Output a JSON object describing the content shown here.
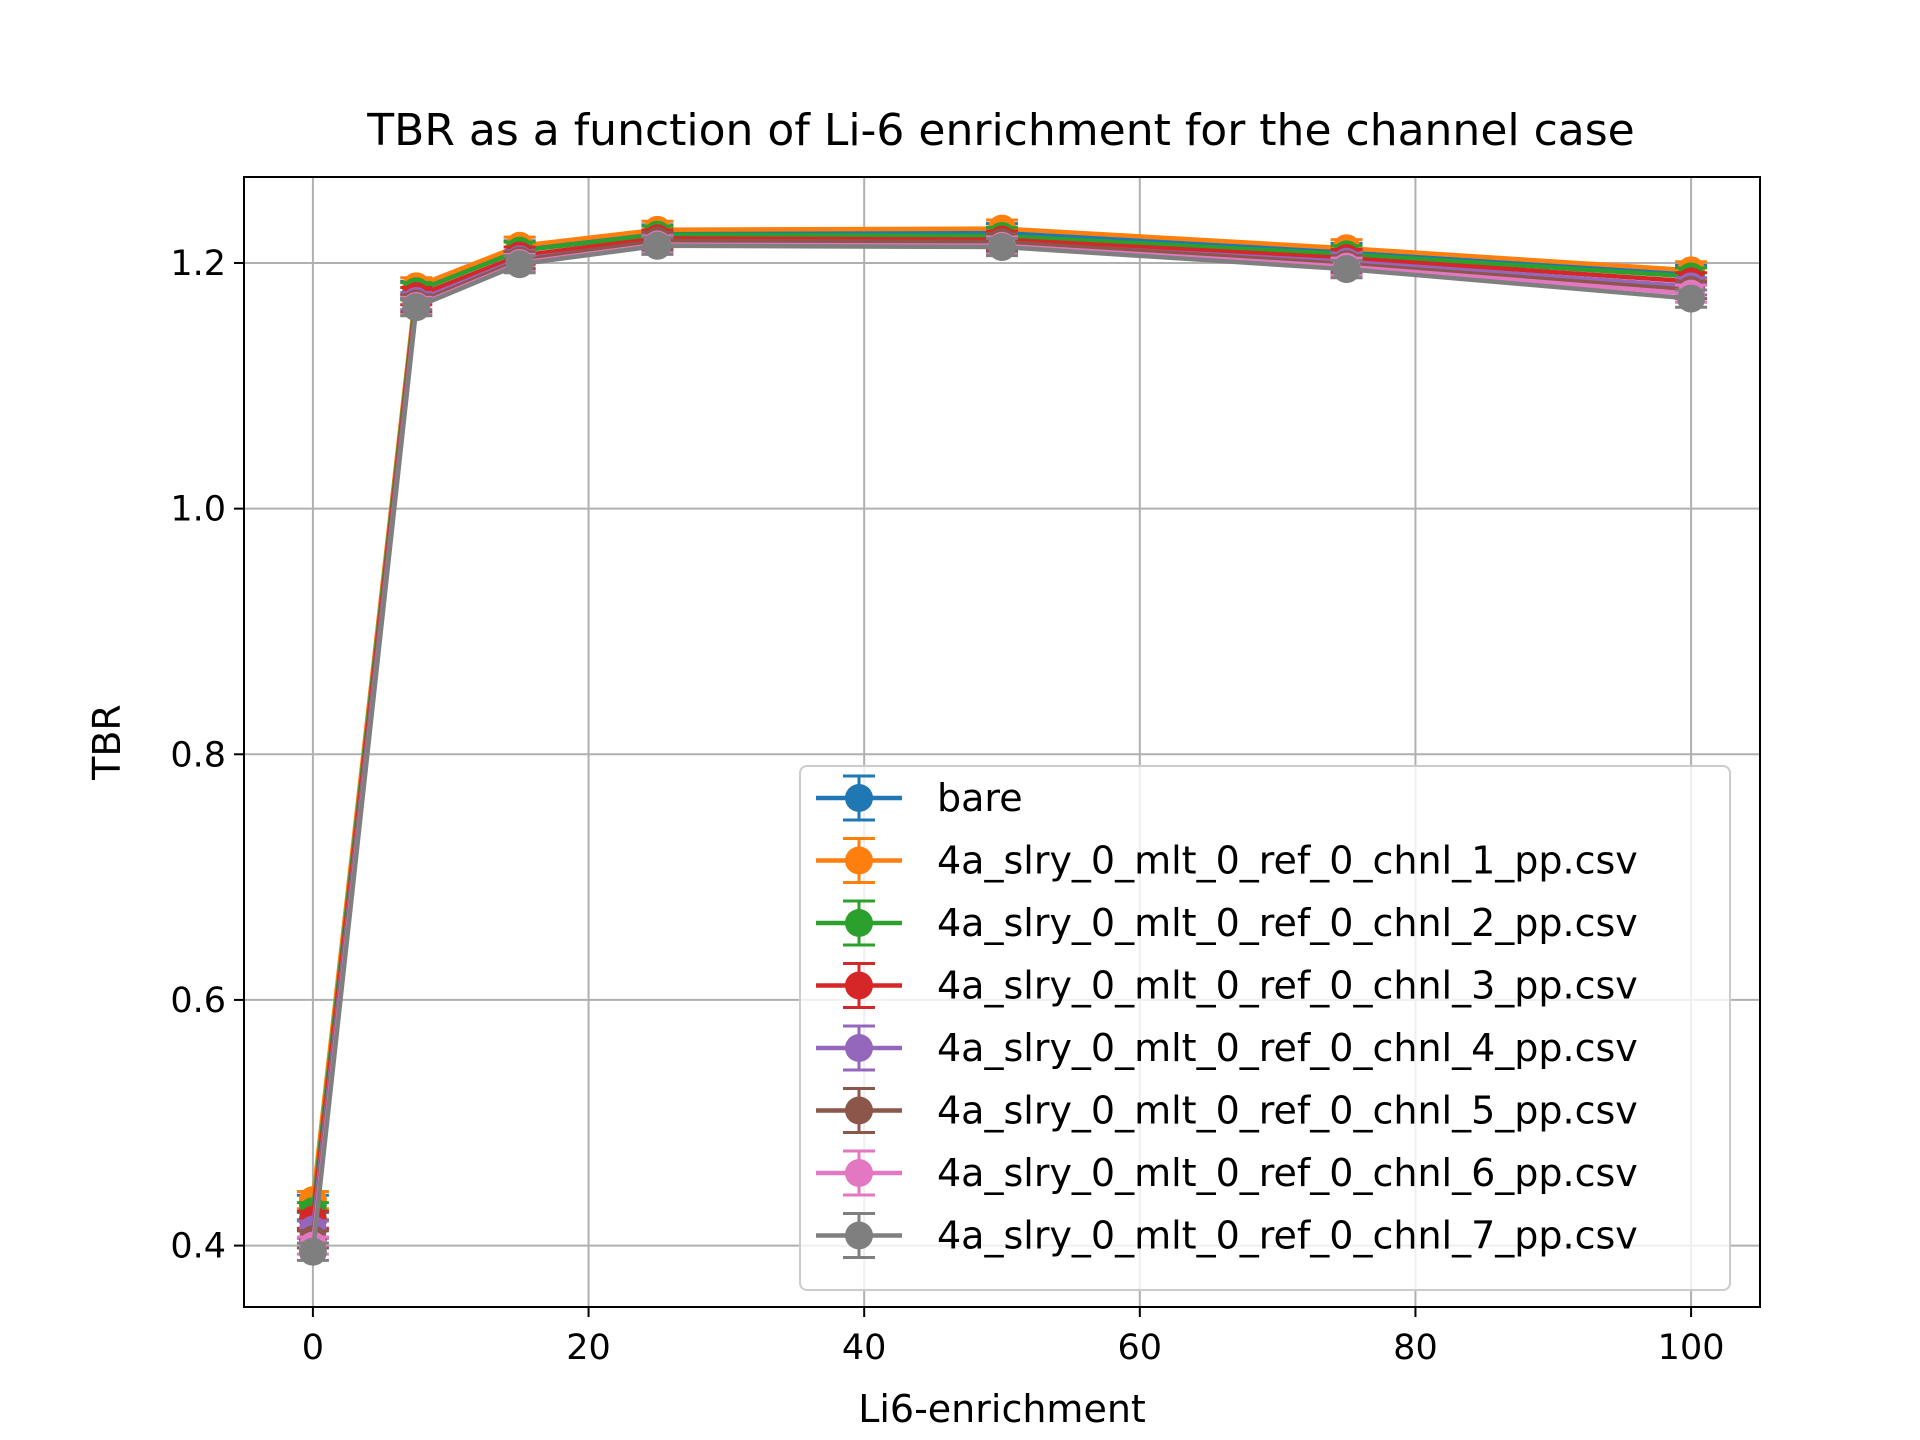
{
  "chart_data": {
    "type": "line",
    "title": "TBR as a function of Li-6 enrichment for the channel case",
    "xlabel": "Li6-enrichment",
    "ylabel": "TBR",
    "xlim": [
      -5,
      105
    ],
    "ylim": [
      0.35,
      1.27
    ],
    "grid": true,
    "legend_position": "lower right",
    "x_ticks": [
      0,
      20,
      40,
      60,
      80,
      100
    ],
    "y_ticks": [
      0.4,
      0.6,
      0.8,
      1.0,
      1.2
    ],
    "x_tick_labels": [
      "0",
      "20",
      "40",
      "60",
      "80",
      "100"
    ],
    "y_tick_labels": [
      "0.4",
      "0.6",
      "0.8",
      "1.0",
      "1.2"
    ],
    "x": [
      0,
      7.5,
      15,
      25,
      50,
      75,
      100
    ],
    "series": [
      {
        "name": "bare",
        "color": "#1f77b4",
        "values": [
          0.434,
          1.178,
          1.211,
          1.224,
          1.225,
          1.209,
          1.191
        ],
        "error": 0.007
      },
      {
        "name": "4a_slry_0_mlt_0_ref_0_chnl_1_pp.csv",
        "color": "#ff7f0e",
        "values": [
          0.437,
          1.181,
          1.214,
          1.227,
          1.228,
          1.212,
          1.194
        ],
        "error": 0.007
      },
      {
        "name": "4a_slry_0_mlt_0_ref_0_chnl_2_pp.csv",
        "color": "#2ca02c",
        "values": [
          0.428,
          1.177,
          1.21,
          1.223,
          1.222,
          1.207,
          1.189
        ],
        "error": 0.007
      },
      {
        "name": "4a_slry_0_mlt_0_ref_0_chnl_3_pp.csv",
        "color": "#d62728",
        "values": [
          0.421,
          1.173,
          1.206,
          1.22,
          1.219,
          1.204,
          1.185
        ],
        "error": 0.007
      },
      {
        "name": "4a_slry_0_mlt_0_ref_0_chnl_4_pp.csv",
        "color": "#9467bd",
        "values": [
          0.413,
          1.169,
          1.203,
          1.217,
          1.216,
          1.201,
          1.181
        ],
        "error": 0.007
      },
      {
        "name": "4a_slry_0_mlt_0_ref_0_chnl_5_pp.csv",
        "color": "#8c564b",
        "values": [
          0.405,
          1.167,
          1.202,
          1.218,
          1.217,
          1.199,
          1.178
        ],
        "error": 0.007
      },
      {
        "name": "4a_slry_0_mlt_0_ref_0_chnl_6_pp.csv",
        "color": "#e377c2",
        "values": [
          0.4,
          1.165,
          1.2,
          1.215,
          1.214,
          1.197,
          1.175
        ],
        "error": 0.007
      },
      {
        "name": "4a_slry_0_mlt_0_ref_0_chnl_7_pp.csv",
        "color": "#7f7f7f",
        "values": [
          0.395,
          1.164,
          1.199,
          1.214,
          1.213,
          1.195,
          1.171
        ],
        "error": 0.007
      }
    ]
  }
}
